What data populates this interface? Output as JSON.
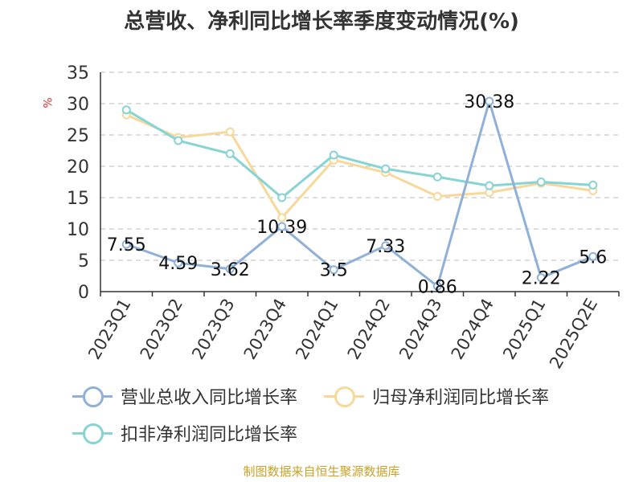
{
  "title": "总营收、净利同比增长率季度变动情况(%)",
  "source_note": "制图数据来自恒生聚源数据库",
  "chart_data": {
    "type": "line",
    "title": "总营收、净利同比增长率季度变动情况(%)",
    "ylabel": "%",
    "xlabel": "",
    "ylim": [
      0,
      35
    ],
    "yticks": [
      0,
      5,
      10,
      15,
      20,
      25,
      30,
      35
    ],
    "grid": true,
    "legend_position": "bottom",
    "categories": [
      "2023Q1",
      "2023Q2",
      "2023Q3",
      "2023Q4",
      "2024Q1",
      "2024Q2",
      "2024Q3",
      "2024Q4",
      "2025Q1",
      "2025Q2E"
    ],
    "series": [
      {
        "name": "营业总收入同比增长率",
        "color": "#8fb0d8",
        "values": [
          7.55,
          4.59,
          3.62,
          10.39,
          3.5,
          7.33,
          0.86,
          30.38,
          2.22,
          5.6
        ],
        "labels": [
          "7.55",
          "4.59",
          "3.62",
          "10.39",
          "3.5",
          "7.33",
          "0.86",
          "30.38",
          "2.22",
          "5.6"
        ]
      },
      {
        "name": "归母净利润同比增长率",
        "color": "#f7d89a",
        "values": [
          28.2,
          24.6,
          25.5,
          11.8,
          21.0,
          19.0,
          15.2,
          15.8,
          17.3,
          16.1
        ]
      },
      {
        "name": "扣非净利润同比增长率",
        "color": "#86d4d3",
        "values": [
          29.0,
          24.1,
          22.0,
          15.0,
          21.8,
          19.6,
          18.3,
          16.9,
          17.5,
          17.0
        ]
      }
    ]
  }
}
